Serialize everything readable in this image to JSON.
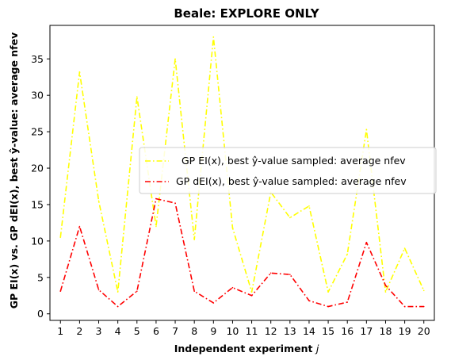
{
  "chart_data": {
    "type": "line",
    "title": "Beale: EXPLORE ONLY",
    "xlabel": "Independent experiment j",
    "xlabel_main": "Independent experiment ",
    "xlabel_var": "j",
    "ylabel": "GP EI(x) vs. GP dEI(x), best ŷ-value: average nfev",
    "x": [
      1,
      2,
      3,
      4,
      5,
      6,
      7,
      8,
      9,
      10,
      11,
      12,
      13,
      14,
      15,
      16,
      17,
      18,
      19,
      20
    ],
    "xticks": [
      "1",
      "2",
      "3",
      "4",
      "5",
      "6",
      "7",
      "8",
      "9",
      "10",
      "11",
      "12",
      "13",
      "14",
      "15",
      "16",
      "17",
      "18",
      "19",
      "20"
    ],
    "yticks": [
      0,
      5,
      10,
      15,
      20,
      25,
      30,
      35
    ],
    "ylim": [
      -0.9,
      39.6
    ],
    "xlim": [
      0.45,
      20.55
    ],
    "grid": false,
    "legend_position": "center-right",
    "series": [
      {
        "name": "GP EI(x), best ŷ-value sampled: average nfev",
        "color": "#ffff00",
        "linestyle": "dashdot",
        "values": [
          10.5,
          33.2,
          15.5,
          3.0,
          29.8,
          12.0,
          35.0,
          10.2,
          38.0,
          11.8,
          3.0,
          16.7,
          13.2,
          14.8,
          3.0,
          8.2,
          25.3,
          3.0,
          9.0,
          3.2
        ]
      },
      {
        "name": "GP dEI(x), best ŷ-value sampled: average nfev",
        "color": "#ff0000",
        "linestyle": "dashdot",
        "values": [
          3.1,
          12.0,
          3.3,
          1.0,
          3.1,
          15.8,
          15.2,
          3.1,
          1.5,
          3.6,
          2.5,
          5.6,
          5.4,
          1.8,
          1.0,
          1.6,
          9.8,
          3.9,
          1.0,
          1.0
        ]
      }
    ]
  }
}
